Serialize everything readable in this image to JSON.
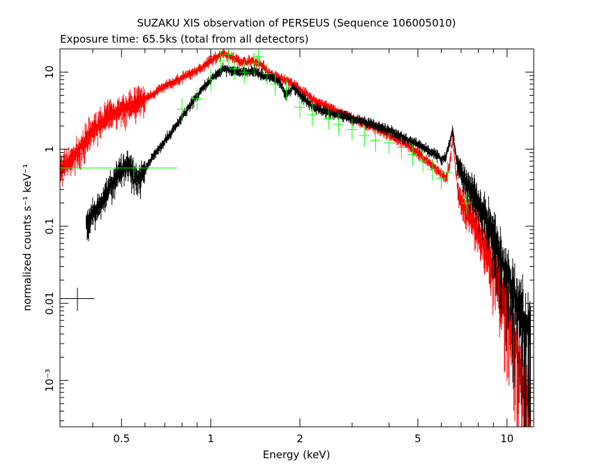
{
  "chart_data": {
    "type": "scatter",
    "title": "SUZAKU XIS observation of PERSEUS (Sequence 106005010)",
    "subtitle": "Exposure time: 65.5ks (total from all detectors)",
    "xlabel": "Energy (keV)",
    "ylabel": "normalized counts s⁻¹ keV⁻¹",
    "x_scale": "log",
    "y_scale": "log",
    "xlim": [
      0.31,
      12.3
    ],
    "ylim": [
      0.00025,
      20
    ],
    "grid": false,
    "x_ticks": [
      {
        "value": 0.5,
        "label": "0.5"
      },
      {
        "value": 1,
        "label": "1"
      },
      {
        "value": 2,
        "label": "2"
      },
      {
        "value": 5,
        "label": "5"
      },
      {
        "value": 10,
        "label": "10"
      }
    ],
    "y_ticks": [
      {
        "value": 10,
        "label": "10"
      },
      {
        "value": 1,
        "label": "1"
      },
      {
        "value": 0.1,
        "label": "0.1"
      },
      {
        "value": 0.01,
        "label": "0.01"
      },
      {
        "value": 0.001,
        "label": "10⁻³"
      }
    ],
    "series": [
      {
        "color": "#ff0000",
        "style": "dense-errorbars",
        "x": [
          0.31,
          0.34,
          0.37,
          0.4,
          0.45,
          0.5,
          0.55,
          0.6,
          0.7,
          0.8,
          0.9,
          1.0,
          1.1,
          1.2,
          1.3,
          1.4,
          1.5,
          1.6,
          1.8,
          2.0,
          2.2,
          2.5,
          3.0,
          3.5,
          4.0,
          4.5,
          5.0,
          5.5,
          6.0,
          6.2,
          6.4,
          6.55,
          6.7,
          6.85,
          7.0,
          7.5,
          8.0,
          8.5,
          9.0,
          9.5,
          10.0,
          10.5,
          11.0,
          11.5,
          12.0
        ],
        "y": [
          0.55,
          0.75,
          1.2,
          1.8,
          2.7,
          3.4,
          4.0,
          4.5,
          6.5,
          8.5,
          10.5,
          14.0,
          18.0,
          15.0,
          13.5,
          14.0,
          12.0,
          9.0,
          8.0,
          6.0,
          4.5,
          3.5,
          2.5,
          2.0,
          1.55,
          1.2,
          0.9,
          0.65,
          0.48,
          0.42,
          0.6,
          1.4,
          0.55,
          0.28,
          0.22,
          0.14,
          0.09,
          0.05,
          0.03,
          0.018,
          0.01,
          0.005,
          0.002,
          0.0008,
          0.0004
        ]
      },
      {
        "color": "#000000",
        "style": "dense-errorbars",
        "x": [
          0.38,
          0.4,
          0.43,
          0.46,
          0.5,
          0.53,
          0.56,
          0.6,
          0.65,
          0.7,
          0.75,
          0.8,
          0.85,
          0.9,
          1.0,
          1.1,
          1.2,
          1.3,
          1.4,
          1.5,
          1.6,
          1.7,
          1.8,
          1.9,
          2.0,
          2.2,
          2.5,
          3.0,
          3.5,
          4.0,
          4.5,
          5.0,
          5.5,
          6.0,
          6.2,
          6.4,
          6.55,
          6.7,
          6.85,
          7.0,
          7.5,
          8.0,
          8.5,
          9.0,
          9.5,
          10.0,
          10.5,
          11.0,
          11.5,
          12.0
        ],
        "y": [
          0.11,
          0.15,
          0.22,
          0.35,
          0.55,
          0.65,
          0.4,
          0.55,
          0.9,
          1.3,
          1.8,
          2.6,
          3.6,
          5.0,
          8.0,
          11.0,
          10.5,
          10.0,
          10.5,
          9.0,
          8.5,
          7.5,
          5.0,
          6.5,
          5.0,
          3.6,
          3.0,
          2.5,
          2.1,
          1.75,
          1.4,
          1.15,
          0.95,
          0.75,
          0.8,
          1.2,
          1.8,
          0.9,
          0.6,
          0.5,
          0.32,
          0.22,
          0.13,
          0.075,
          0.045,
          0.025,
          0.016,
          0.01,
          0.006,
          0.004
        ]
      },
      {
        "color": "#00ff00",
        "style": "sparse-errorbars",
        "points": [
          {
            "x": 0.55,
            "y": 0.57,
            "xlo": 0.31,
            "xhi": 0.77
          },
          {
            "x": 0.8,
            "y": 3.3
          },
          {
            "x": 0.9,
            "y": 4.5
          },
          {
            "x": 1.0,
            "y": 8.0
          },
          {
            "x": 1.08,
            "y": 14.0
          },
          {
            "x": 1.15,
            "y": 17.0
          },
          {
            "x": 1.2,
            "y": 11.0
          },
          {
            "x": 1.3,
            "y": 10.0
          },
          {
            "x": 1.4,
            "y": 13.0
          },
          {
            "x": 1.45,
            "y": 16.0
          },
          {
            "x": 1.55,
            "y": 9.5
          },
          {
            "x": 1.65,
            "y": 7.0
          },
          {
            "x": 1.8,
            "y": 6.0
          },
          {
            "x": 2.0,
            "y": 3.5
          },
          {
            "x": 2.2,
            "y": 2.8
          },
          {
            "x": 2.5,
            "y": 2.5
          },
          {
            "x": 2.7,
            "y": 2.1
          },
          {
            "x": 3.0,
            "y": 1.8
          },
          {
            "x": 3.3,
            "y": 1.5
          },
          {
            "x": 3.6,
            "y": 1.3
          },
          {
            "x": 4.0,
            "y": 1.2
          },
          {
            "x": 4.4,
            "y": 1.05
          },
          {
            "x": 4.8,
            "y": 0.85
          },
          {
            "x": 5.2,
            "y": 0.7
          },
          {
            "x": 5.6,
            "y": 0.55
          },
          {
            "x": 6.0,
            "y": 0.42
          },
          {
            "x": 6.3,
            "y": 0.5
          },
          {
            "x": 7.3,
            "y": 0.2
          }
        ]
      },
      {
        "color": "#000000",
        "style": "reference-cross",
        "points": [
          {
            "x": 0.355,
            "y": 0.0115,
            "xlo": 0.31,
            "xhi": 0.405,
            "ylo": 0.008,
            "yhi": 0.016
          }
        ]
      }
    ]
  }
}
